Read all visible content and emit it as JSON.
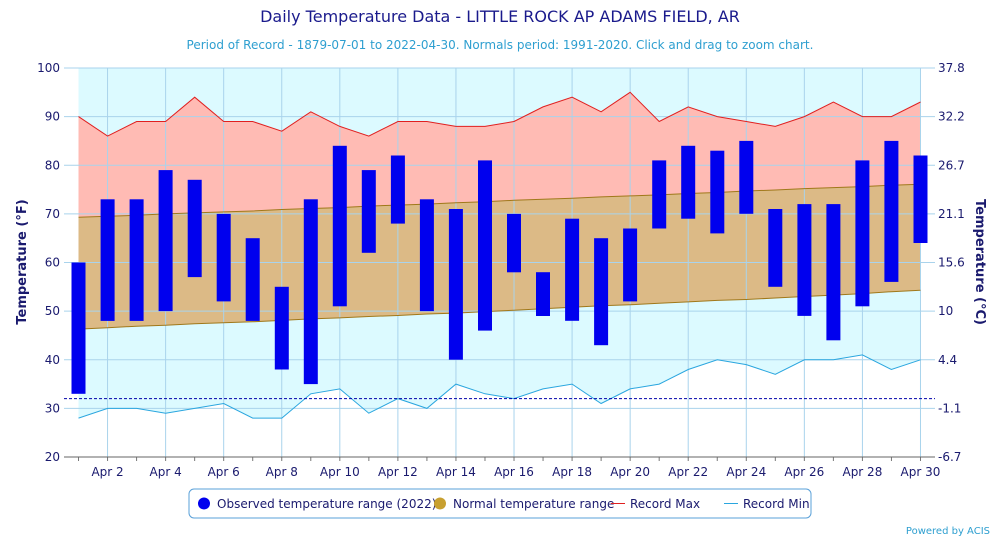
{
  "chart_data": {
    "type": "bar",
    "title": "Daily Temperature Data - LITTLE ROCK AP ADAMS FIELD, AR",
    "subtitle": "Period of Record - 1879-07-01 to 2022-04-30. Normals period: 1991-2020. Click and drag to zoom chart.",
    "ylabel": "Temperature (°F)",
    "ylabel_right": "Temperature (°C)",
    "ylim": [
      20,
      100
    ],
    "yticks": [
      20,
      30,
      40,
      50,
      60,
      70,
      80,
      90,
      100
    ],
    "yticks_right": [
      "-6.7",
      "-1.1",
      "4.4",
      "10",
      "15.6",
      "21.1",
      "26.7",
      "32.2",
      "37.8"
    ],
    "days": [
      1,
      2,
      3,
      4,
      5,
      6,
      7,
      8,
      9,
      10,
      11,
      12,
      13,
      14,
      15,
      16,
      17,
      18,
      19,
      20,
      21,
      22,
      23,
      24,
      25,
      26,
      27,
      28,
      29,
      30
    ],
    "xtick_labels": [
      "Apr 2",
      "Apr 4",
      "Apr 6",
      "Apr 8",
      "Apr 10",
      "Apr 12",
      "Apr 14",
      "Apr 16",
      "Apr 18",
      "Apr 20",
      "Apr 22",
      "Apr 24",
      "Apr 26",
      "Apr 28",
      "Apr 30"
    ],
    "xtick_days": [
      2,
      4,
      6,
      8,
      10,
      12,
      14,
      16,
      18,
      20,
      22,
      24,
      26,
      28,
      30
    ],
    "series": [
      {
        "name": "Observed temperature range (2022)",
        "type": "range-bar",
        "color": "#0000ee",
        "low": [
          33,
          48,
          48,
          50,
          57,
          52,
          48,
          38,
          35,
          51,
          62,
          68,
          50,
          40,
          46,
          58,
          49,
          48,
          43,
          52,
          67,
          69,
          66,
          70,
          55,
          49,
          44,
          51,
          56,
          64
        ],
        "high": [
          60,
          73,
          73,
          79,
          77,
          70,
          65,
          55,
          73,
          84,
          79,
          82,
          73,
          71,
          81,
          70,
          58,
          69,
          65,
          67,
          81,
          84,
          83,
          85,
          71,
          72,
          72,
          81,
          85,
          82
        ]
      },
      {
        "name": "Normal temperature range",
        "type": "range-area",
        "color": "#c8a030",
        "low": [
          46.3,
          46.6,
          46.9,
          47.1,
          47.4,
          47.6,
          47.8,
          48.1,
          48.4,
          48.6,
          48.9,
          49.1,
          49.4,
          49.6,
          49.9,
          50.2,
          50.5,
          50.8,
          51.1,
          51.3,
          51.6,
          51.9,
          52.2,
          52.4,
          52.7,
          53,
          53.3,
          53.6,
          54,
          54.3
        ],
        "high": [
          69.3,
          69.5,
          69.7,
          70,
          70.2,
          70.4,
          70.6,
          70.9,
          71.1,
          71.3,
          71.6,
          71.8,
          72,
          72.3,
          72.5,
          72.8,
          73,
          73.2,
          73.5,
          73.7,
          73.9,
          74.2,
          74.4,
          74.7,
          74.9,
          75.2,
          75.4,
          75.6,
          75.9,
          76.1
        ]
      },
      {
        "name": "Record Max",
        "type": "line",
        "color": "#e02020",
        "values": [
          90,
          86,
          89,
          89,
          94,
          89,
          89,
          87,
          91,
          88,
          86,
          89,
          89,
          88,
          88,
          89,
          92,
          94,
          91,
          95,
          89,
          92,
          90,
          89,
          88,
          90,
          93,
          90,
          90,
          93
        ]
      },
      {
        "name": "Record Min",
        "type": "line",
        "color": "#2aa6df",
        "values": [
          28,
          30,
          30,
          29,
          30,
          31,
          28,
          28,
          33,
          34,
          29,
          32,
          30,
          35,
          33,
          32,
          34,
          35,
          31,
          34,
          35,
          38,
          40,
          39,
          37,
          40,
          40,
          41,
          38,
          40
        ]
      }
    ],
    "reference_line": {
      "value": 32,
      "color": "#0000aa"
    },
    "legend_position": "bottom-center",
    "grid": true
  },
  "credit": "Powered by ACIS"
}
